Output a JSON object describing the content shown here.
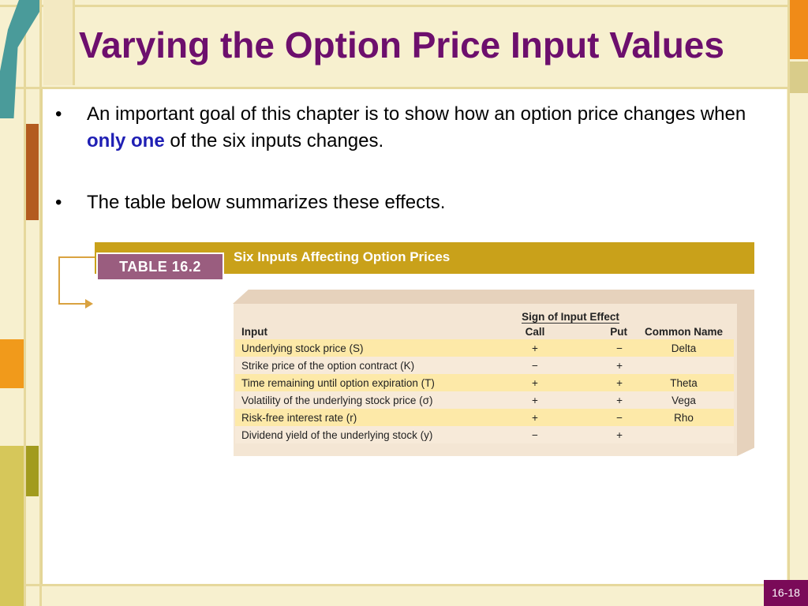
{
  "slide": {
    "title": "Varying the Option Price Input Values",
    "bullets": [
      {
        "marker": "•",
        "before": "An important goal of this chapter is to show how an option price changes when ",
        "emphasis": "only one",
        "after": " of the six inputs changes."
      },
      {
        "marker": "•",
        "text": "The table below summarizes these effects."
      }
    ],
    "page_number": "16-18"
  },
  "table": {
    "label": "TABLE 16.2",
    "title": "Six Inputs Affecting Option Prices",
    "headers": {
      "input": "Input",
      "group": "Sign of Input Effect",
      "call": "Call",
      "put": "Put",
      "common": "Common Name"
    },
    "rows": [
      {
        "input": "Underlying stock price (S)",
        "call": "+",
        "put": "−",
        "name": "Delta"
      },
      {
        "input": "Strike price of the option contract (K)",
        "call": "−",
        "put": "+",
        "name": ""
      },
      {
        "input": "Time remaining until option expiration (T)",
        "call": "+",
        "put": "+",
        "name": "Theta"
      },
      {
        "input": "Volatility of the underlying stock price (σ)",
        "call": "+",
        "put": "+",
        "name": "Vega"
      },
      {
        "input": "Risk-free interest rate (r)",
        "call": "+",
        "put": "−",
        "name": "Rho"
      },
      {
        "input": "Dividend yield of the underlying stock (y)",
        "call": "−",
        "put": "+",
        "name": ""
      }
    ]
  },
  "colors": {
    "title": "#6d0f6d",
    "emphasis": "#1f1fb4",
    "banner": "#c9a11a",
    "label_box": "#9a5d7f",
    "page_number_bg": "#7a0a58"
  }
}
